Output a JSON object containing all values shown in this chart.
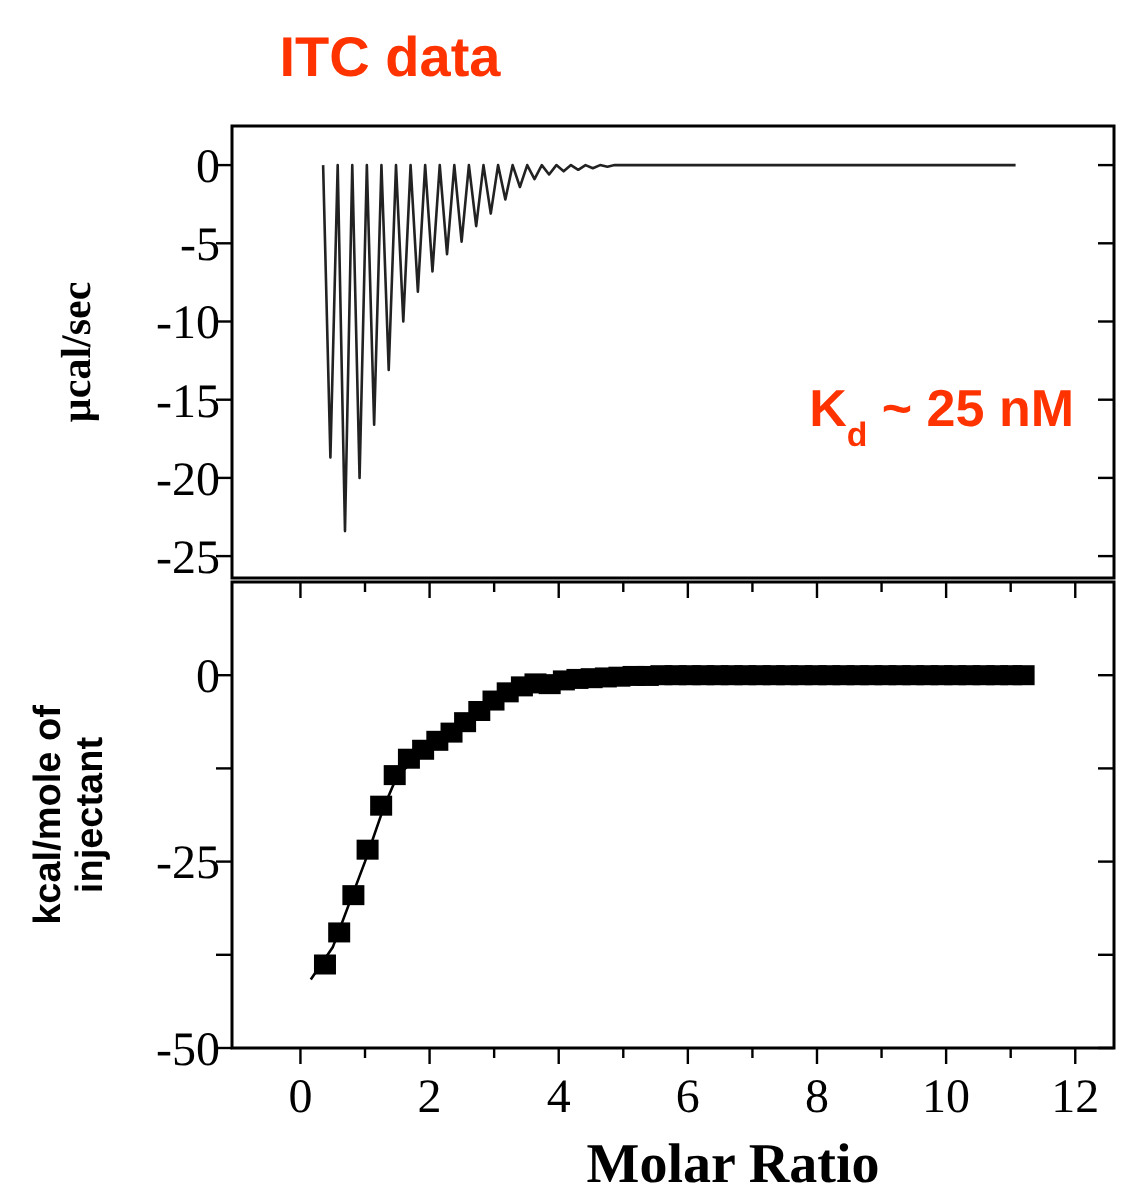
{
  "chart_data": [
    {
      "type": "line",
      "title": "ITC data",
      "ylabel": "µcal/sec",
      "annotations": [
        "K$_{d}$ ~ 25 nM"
      ],
      "categories": [
        null,
        null,
        null,
        null,
        null,
        null,
        null,
        null,
        null,
        null,
        null,
        null,
        null,
        null,
        null,
        null,
        null,
        null,
        null,
        null,
        null,
        null,
        null,
        null,
        null,
        null,
        null,
        null,
        null,
        null,
        null,
        null,
        null,
        null,
        null,
        null,
        null,
        null,
        null,
        null,
        null,
        null,
        null,
        null,
        null,
        null,
        null,
        null,
        null,
        null,
        null,
        null,
        null,
        null,
        null,
        null,
        null,
        null,
        null,
        null,
        null,
        null,
        null,
        null,
        null,
        null,
        null,
        null,
        null,
        null,
        null,
        null,
        null,
        null,
        null,
        null,
        null,
        null,
        null,
        null,
        null,
        null,
        null,
        null,
        null,
        null,
        null,
        null,
        null,
        null,
        null,
        null,
        null,
        null,
        null,
        null
      ],
      "series": [
        {
          "color": "#222222",
          "values": [
            0,
            -18.7,
            0,
            -23.4,
            0,
            -20.0,
            0,
            -16.6,
            0,
            -13.1,
            0,
            -10.0,
            0,
            -8.1,
            0,
            -6.8,
            0,
            -5.7,
            0,
            -4.9,
            0,
            -3.9,
            0,
            -3.1,
            0,
            -2.2,
            0,
            -1.4,
            0,
            -0.9,
            0,
            -0.6,
            0,
            -0.4,
            0,
            -0.3,
            0,
            -0.2,
            0,
            -0.1,
            0,
            0,
            0,
            0,
            0,
            0,
            0,
            0,
            0,
            0,
            0,
            0,
            0,
            0,
            0,
            0,
            0,
            0,
            0,
            0,
            0,
            0,
            0,
            0,
            0,
            0,
            0,
            0,
            0,
            0,
            0,
            0,
            0,
            0,
            0,
            0,
            0,
            0,
            0,
            0,
            0,
            0,
            0,
            0,
            0,
            0,
            0,
            0,
            0,
            0,
            0,
            0,
            0,
            0,
            0,
            0
          ]
        }
      ],
      "ylim": [
        -26.4,
        2.5
      ],
      "yticks": [
        0,
        -5,
        -10,
        -15,
        -20,
        -25
      ],
      "tick_labels": "y"
    },
    {
      "type": "scatter",
      "xlabel": "Molar Ratio",
      "ylabel": "kcal/mole of injectant",
      "series": [
        {
          "color": "#000000",
          "marker": "square",
          "x": [
            0.38,
            0.6,
            0.82,
            1.04,
            1.25,
            1.46,
            1.68,
            1.9,
            2.12,
            2.34,
            2.55,
            2.77,
            2.99,
            3.21,
            3.43,
            3.64,
            3.86,
            4.08,
            4.29,
            4.51,
            4.73,
            4.94,
            5.16,
            5.38,
            5.59,
            5.81,
            6.03,
            6.24,
            6.46,
            6.68,
            6.89,
            7.11,
            7.33,
            7.54,
            7.76,
            7.98,
            8.19,
            8.41,
            8.63,
            8.84,
            9.06,
            9.28,
            9.49,
            9.71,
            9.93,
            10.14,
            10.36,
            10.58,
            10.79,
            11.01,
            11.2
          ],
          "values": [
            -38.8,
            -34.5,
            -29.5,
            -23.4,
            -17.5,
            -13.4,
            -11.2,
            -10.0,
            -8.8,
            -7.7,
            -6.3,
            -4.8,
            -3.4,
            -2.3,
            -1.5,
            -1.1,
            -1.2,
            -0.7,
            -0.5,
            -0.4,
            -0.3,
            -0.2,
            -0.1,
            -0.1,
            0,
            0,
            0,
            0,
            0,
            0,
            0,
            0,
            0,
            0,
            0,
            0,
            0,
            0,
            0,
            0,
            0,
            0,
            0,
            0,
            0,
            0,
            0,
            0,
            0,
            0,
            0
          ]
        },
        {
          "type": "line",
          "color": "#000000",
          "x": [
            0.16,
            0.5,
            1.0,
            1.3,
            1.5,
            2.0,
            2.5,
            3.0,
            3.5,
            4.0,
            5.0,
            6.0,
            11.2
          ],
          "values": [
            -40.8,
            -36.5,
            -25,
            -17.5,
            -13.5,
            -9.5,
            -6.6,
            -3.6,
            -1.6,
            -0.7,
            -0.1,
            0,
            0
          ]
        }
      ],
      "xlim": [
        -1.06,
        12.6
      ],
      "xticks": [
        0,
        {
          "value": 1,
          "label": null
        },
        2,
        {
          "value": 3,
          "label": null
        },
        4,
        {
          "value": 5,
          "label": null
        },
        6,
        {
          "value": 7,
          "label": null
        },
        8,
        {
          "value": 9,
          "label": null
        },
        10,
        {
          "value": 11,
          "label": null
        },
        12
      ],
      "ylim": [
        -50,
        12.5
      ],
      "yticks": [
        0,
        {
          "value": -12.5,
          "label": null
        },
        -25,
        {
          "value": -37.5,
          "label": null
        },
        -50
      ]
    }
  ]
}
